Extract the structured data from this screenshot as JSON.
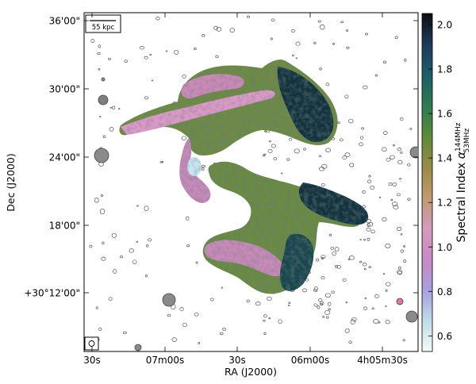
{
  "chart_data": {
    "type": "heatmap",
    "title": "",
    "xlabel": "RA (J2000)",
    "ylabel": "Dec (J2000)",
    "x_ticks": [
      "30s",
      "07m00s",
      "30s",
      "06m00s",
      "4h05m30s"
    ],
    "y_ticks": [
      "36'00\"",
      "30'00\"",
      "24'00\"",
      "18'00\"",
      "+30°12'00\""
    ],
    "colorbar": {
      "label_main": "Spectral Index ",
      "label_symbol": "α",
      "label_sup": "144MHz",
      "label_sub": "53MHz",
      "range": [
        0.53,
        2.05
      ],
      "ticks": [
        "2.0",
        "1.8",
        "1.6",
        "1.4",
        "1.2",
        "1.0",
        "0.8",
        "0.6"
      ],
      "colormap": [
        "#f4fbf8",
        "#bfdce8",
        "#a7a0dc",
        "#c78ac4",
        "#d39bbd",
        "#c09a6f",
        "#9a8a4a",
        "#5e8a3a",
        "#2f7a52",
        "#1f5d68",
        "#1d3a5a",
        "#0d0d15"
      ]
    },
    "scale_bar": {
      "label": "55 kpc"
    },
    "beam_marker": true
  }
}
